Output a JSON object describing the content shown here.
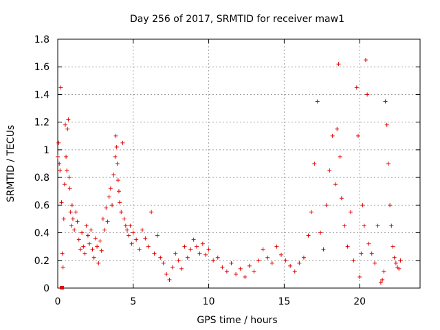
{
  "chart_data": {
    "type": "scatter",
    "title": "Day 256 of 2017, SRMTID for receiver maw1",
    "xlabel": "GPS time / hours",
    "ylabel": "SRMTID / TECUs",
    "xlim": [
      0,
      24
    ],
    "ylim": [
      0,
      1.8
    ],
    "xticks": [
      0,
      5,
      10,
      15,
      20
    ],
    "xtick_labels": [
      "0",
      "5",
      "10",
      "15",
      "20"
    ],
    "yticks": [
      0,
      0.2,
      0.4,
      0.6,
      0.8,
      1.0,
      1.2,
      1.4,
      1.6,
      1.8
    ],
    "ytick_labels": [
      "0",
      "0.2",
      "0.4",
      "0.6",
      "0.8",
      "1",
      "1.2",
      "1.4",
      "1.6",
      "1.8"
    ],
    "grid": true,
    "marker": "+",
    "series": [
      {
        "name": "SRMTID",
        "color": "#e00000",
        "x": [
          0.0,
          0.05,
          0.1,
          0.15,
          0.2,
          0.25,
          0.3,
          0.35,
          0.4,
          0.45,
          0.5,
          0.55,
          0.6,
          0.65,
          0.7,
          0.75,
          0.8,
          0.85,
          0.9,
          0.95,
          1.0,
          1.1,
          1.2,
          1.3,
          1.4,
          1.5,
          1.6,
          1.7,
          1.8,
          1.9,
          2.0,
          2.1,
          2.2,
          2.3,
          2.4,
          2.5,
          2.6,
          2.7,
          2.8,
          2.9,
          3.0,
          3.1,
          3.2,
          3.3,
          3.4,
          3.5,
          3.6,
          3.7,
          3.8,
          3.85,
          3.9,
          3.95,
          4.0,
          4.05,
          4.1,
          4.2,
          4.3,
          4.4,
          4.5,
          4.6,
          4.7,
          4.8,
          4.9,
          5.0,
          5.2,
          5.4,
          5.6,
          5.8,
          6.0,
          6.2,
          6.4,
          6.6,
          6.8,
          7.0,
          7.2,
          7.4,
          7.6,
          7.8,
          8.0,
          8.2,
          8.4,
          8.6,
          8.8,
          9.0,
          9.2,
          9.4,
          9.6,
          9.8,
          10.0,
          10.3,
          10.6,
          10.9,
          11.2,
          11.5,
          11.8,
          12.1,
          12.4,
          12.7,
          13.0,
          13.3,
          13.6,
          13.9,
          14.2,
          14.5,
          14.8,
          15.1,
          15.4,
          15.7,
          16.0,
          16.3,
          16.6,
          16.8,
          17.0,
          17.2,
          17.4,
          17.6,
          17.8,
          18.0,
          18.2,
          18.4,
          18.5,
          18.6,
          18.7,
          18.8,
          19.0,
          19.2,
          19.4,
          19.6,
          19.8,
          19.9,
          20.0,
          20.1,
          20.2,
          20.3,
          20.4,
          20.5,
          20.6,
          20.8,
          21.0,
          21.2,
          21.4,
          21.5,
          21.6,
          21.7,
          21.8,
          21.9,
          22.0,
          22.1,
          22.2,
          22.3,
          22.4,
          22.5,
          22.6,
          22.7
        ],
        "y": [
          0.95,
          1.05,
          0.9,
          0.85,
          1.45,
          0.62,
          0.25,
          0.15,
          0.5,
          0.75,
          1.18,
          0.95,
          0.85,
          1.15,
          1.22,
          0.8,
          0.72,
          0.55,
          0.45,
          0.6,
          0.5,
          0.42,
          0.55,
          0.48,
          0.35,
          0.28,
          0.4,
          0.3,
          0.25,
          0.45,
          0.38,
          0.32,
          0.42,
          0.28,
          0.22,
          0.36,
          0.3,
          0.18,
          0.34,
          0.27,
          0.5,
          0.42,
          0.58,
          0.48,
          0.66,
          0.72,
          0.6,
          0.82,
          0.95,
          1.1,
          1.02,
          0.9,
          0.78,
          0.7,
          0.62,
          0.55,
          1.05,
          0.5,
          0.45,
          0.42,
          0.38,
          0.45,
          0.32,
          0.4,
          0.35,
          0.28,
          0.42,
          0.36,
          0.3,
          0.55,
          0.25,
          0.38,
          0.22,
          0.18,
          0.1,
          0.06,
          0.15,
          0.25,
          0.2,
          0.14,
          0.3,
          0.22,
          0.28,
          0.35,
          0.3,
          0.25,
          0.32,
          0.24,
          0.28,
          0.2,
          0.22,
          0.15,
          0.12,
          0.18,
          0.1,
          0.14,
          0.08,
          0.16,
          0.12,
          0.2,
          0.28,
          0.22,
          0.18,
          0.3,
          0.24,
          0.2,
          0.16,
          0.12,
          0.18,
          0.22,
          0.38,
          0.55,
          0.9,
          1.35,
          0.4,
          0.28,
          0.6,
          0.85,
          1.1,
          0.75,
          1.15,
          1.62,
          0.95,
          0.65,
          0.45,
          0.3,
          0.55,
          0.2,
          1.45,
          1.1,
          0.08,
          0.25,
          0.6,
          0.45,
          1.65,
          1.4,
          0.32,
          0.25,
          0.18,
          0.45,
          0.04,
          0.06,
          0.12,
          1.35,
          1.18,
          0.9,
          0.6,
          0.45,
          0.3,
          0.22,
          0.18,
          0.15,
          0.14,
          0.2
        ]
      }
    ],
    "outlier_points": {
      "x": [
        0.25,
        0.3
      ],
      "y": [
        0.0,
        0.0
      ]
    }
  }
}
